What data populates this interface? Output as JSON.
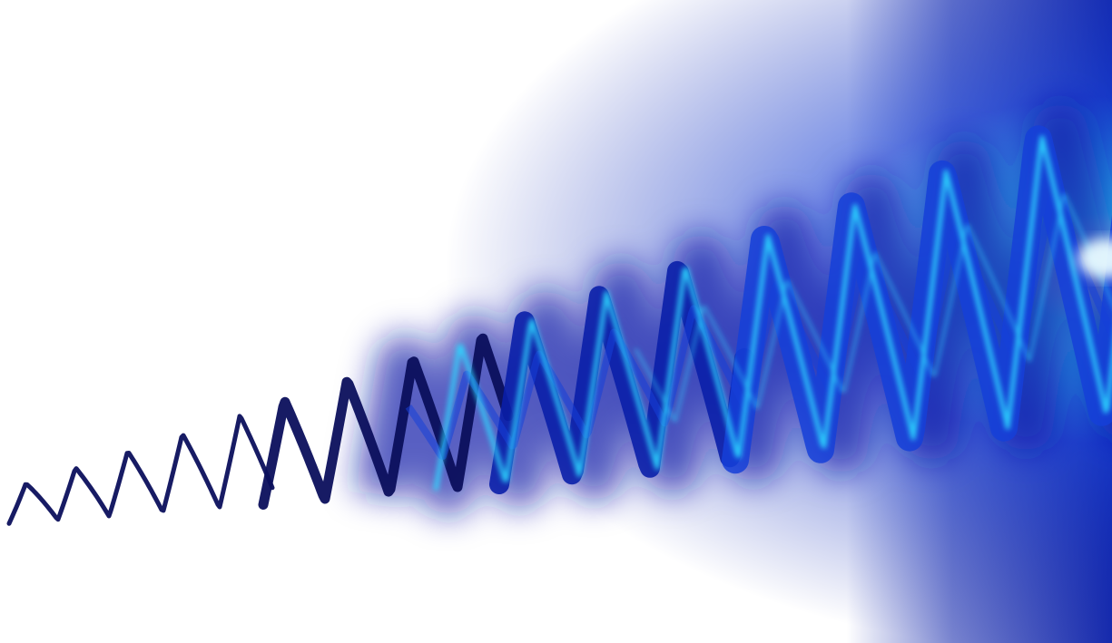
{
  "image": {
    "subject": "glowing-wave-pattern",
    "colors": {
      "background": "#ffffff",
      "dark_navy": "#0b0f5c",
      "deep_blue": "#0a1fa8",
      "royal_blue": "#1540d8",
      "cyan_glow": "#2fd6ff",
      "highlight": "#e8fbff"
    }
  }
}
